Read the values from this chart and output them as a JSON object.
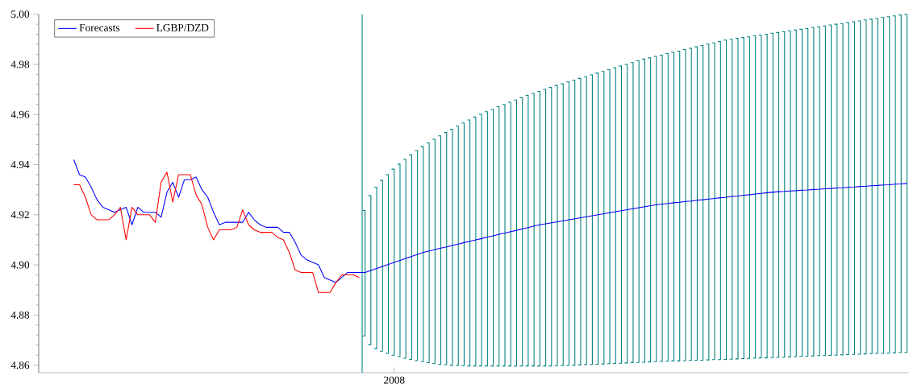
{
  "chart_data": {
    "type": "line",
    "categories": [
      null,
      null,
      null,
      null,
      null,
      null,
      null,
      null,
      null,
      null,
      null,
      null,
      null,
      null,
      null,
      null,
      null,
      null,
      null,
      null,
      null,
      null,
      null,
      null,
      null,
      null,
      null,
      null,
      null,
      null,
      null,
      null,
      null,
      null,
      null,
      null,
      null,
      null,
      null,
      null,
      null,
      null,
      null,
      null,
      null,
      null,
      null,
      null,
      null,
      null,
      null,
      null,
      null,
      null,
      null,
      "2008",
      null,
      null,
      null,
      null,
      null,
      null,
      null,
      null,
      null,
      null,
      null,
      null,
      null,
      null,
      null,
      null,
      null,
      null,
      null,
      null,
      null,
      null,
      null,
      null,
      null,
      null,
      null,
      null,
      null,
      null,
      null,
      null,
      null,
      null,
      null,
      null,
      null,
      null,
      null,
      null,
      null,
      null,
      null,
      null,
      null,
      null,
      null,
      null,
      null,
      null,
      null,
      null,
      null,
      null,
      null,
      null,
      null,
      null,
      null,
      null,
      null,
      null,
      null,
      null,
      null,
      null,
      null,
      null,
      null,
      null,
      null,
      null,
      null,
      null,
      null,
      null,
      null,
      null,
      null,
      null,
      null,
      null,
      null,
      null,
      null,
      null,
      null,
      null
    ],
    "series": [
      {
        "name": "Forecasts",
        "color": "#0000ff",
        "values": [
          4.942,
          4.936,
          4.935,
          4.931,
          4.926,
          4.923,
          4.922,
          4.921,
          4.922,
          4.923,
          4.916,
          4.923,
          4.921,
          4.921,
          4.921,
          4.919,
          4.929,
          4.933,
          4.927,
          4.934,
          4.934,
          4.935,
          4.93,
          4.927,
          4.921,
          4.916,
          4.917,
          4.917,
          4.917,
          4.917,
          4.921,
          4.918,
          4.916,
          4.915,
          4.915,
          4.915,
          4.913,
          4.913,
          4.909,
          4.904,
          4.902,
          4.901,
          4.9,
          4.895,
          4.894,
          4.893,
          4.895,
          4.897,
          4.897,
          4.897,
          4.897,
          4.8978,
          4.8986,
          4.8994,
          4.9002,
          4.901,
          4.9018,
          4.9026,
          4.9034,
          4.9042,
          4.905,
          4.9056,
          4.9061,
          4.9067,
          4.9072,
          4.9078,
          4.9083,
          4.9089,
          4.9094,
          4.91,
          4.9105,
          4.9111,
          4.9116,
          4.9122,
          4.9127,
          4.9133,
          4.9138,
          4.9144,
          4.9149,
          4.9155,
          4.916,
          4.9164,
          4.9168,
          4.9172,
          4.9176,
          4.918,
          4.9184,
          4.9188,
          4.9192,
          4.9196,
          4.92,
          4.9204,
          4.9208,
          4.9212,
          4.9216,
          4.922,
          4.9224,
          4.9228,
          4.9232,
          4.9236,
          4.924,
          4.9243,
          4.9245,
          4.9248,
          4.925,
          4.9253,
          4.9255,
          4.9258,
          4.926,
          4.9263,
          4.9265,
          4.9268,
          4.927,
          4.9273,
          4.9275,
          4.9278,
          4.928,
          4.9283,
          4.9285,
          4.9288,
          4.929,
          4.9292,
          4.9293,
          4.9295,
          4.9296,
          4.9298,
          4.9299,
          4.9301,
          4.9302,
          4.9304,
          4.9305,
          4.9307,
          4.9308,
          4.931,
          4.9311,
          4.9313,
          4.9314,
          4.9316,
          4.9317,
          4.9319,
          4.932,
          4.9322,
          4.9323,
          4.9325
        ],
        "errors": [
          null,
          null,
          null,
          null,
          null,
          null,
          null,
          null,
          null,
          null,
          null,
          null,
          null,
          null,
          null,
          null,
          null,
          null,
          null,
          null,
          null,
          null,
          null,
          null,
          null,
          null,
          null,
          null,
          null,
          null,
          null,
          null,
          null,
          null,
          null,
          null,
          null,
          null,
          null,
          null,
          null,
          null,
          null,
          null,
          null,
          null,
          null,
          null,
          null,
          null,
          [
            4.8717,
            4.9217
          ],
          [
            4.8682,
            4.9276
          ],
          [
            4.8666,
            4.931
          ],
          [
            4.8656,
            4.9337
          ],
          [
            4.8647,
            4.936
          ],
          [
            4.864,
            4.9382
          ],
          [
            4.8634,
            4.9402
          ],
          [
            4.8628,
            4.9421
          ],
          [
            4.8623,
            4.9439
          ],
          [
            4.8618,
            4.9456
          ],
          [
            4.8614,
            4.9472
          ],
          [
            4.861,
            4.9487
          ],
          [
            4.8607,
            4.9501
          ],
          [
            4.8604,
            4.9515
          ],
          [
            4.8602,
            4.9528
          ],
          [
            4.86,
            4.9541
          ],
          [
            4.8599,
            4.9554
          ],
          [
            4.8598,
            4.9566
          ],
          [
            4.8597,
            4.9578
          ],
          [
            4.8597,
            4.959
          ],
          [
            4.8597,
            4.9601
          ],
          [
            4.8597,
            4.9611
          ],
          [
            4.8597,
            4.9621
          ],
          [
            4.8597,
            4.9631
          ],
          [
            4.8597,
            4.964
          ],
          [
            4.8597,
            4.9649
          ],
          [
            4.8597,
            4.9658
          ],
          [
            4.8597,
            4.9667
          ],
          [
            4.8597,
            4.9676
          ],
          [
            4.8597,
            4.9684
          ],
          [
            4.8597,
            4.9692
          ],
          [
            4.8597,
            4.97
          ],
          [
            4.8597,
            4.9708
          ],
          [
            4.8598,
            4.9716
          ],
          [
            4.8598,
            4.9723
          ],
          [
            4.8599,
            4.973
          ],
          [
            4.86,
            4.9737
          ],
          [
            4.8601,
            4.9744
          ],
          [
            4.8602,
            4.9751
          ],
          [
            4.8603,
            4.9758
          ],
          [
            4.8604,
            4.9765
          ],
          [
            4.8605,
            4.9772
          ],
          [
            4.8606,
            4.9779
          ],
          [
            4.8607,
            4.9786
          ],
          [
            4.8608,
            4.9793
          ],
          [
            4.8609,
            4.98
          ],
          [
            4.861,
            4.9807
          ],
          [
            4.8611,
            4.9814
          ],
          [
            4.8612,
            4.9821
          ],
          [
            4.8613,
            4.9826
          ],
          [
            4.8614,
            4.9832
          ],
          [
            4.8615,
            4.9837
          ],
          [
            4.8616,
            4.9843
          ],
          [
            4.8617,
            4.9848
          ],
          [
            4.8617,
            4.9853
          ],
          [
            4.8618,
            4.9859
          ],
          [
            4.8619,
            4.9864
          ],
          [
            4.862,
            4.987
          ],
          [
            4.862,
            4.9875
          ],
          [
            4.8621,
            4.9881
          ],
          [
            4.8622,
            4.9886
          ],
          [
            4.8622,
            4.9891
          ],
          [
            4.8623,
            4.9897
          ],
          [
            4.8624,
            4.99
          ],
          [
            4.8625,
            4.9904
          ],
          [
            4.8626,
            4.9907
          ],
          [
            4.8627,
            4.991
          ],
          [
            4.8628,
            4.9914
          ],
          [
            4.8629,
            4.9917
          ],
          [
            4.8629,
            4.992
          ],
          [
            4.863,
            4.9924
          ],
          [
            4.8631,
            4.9927
          ],
          [
            4.8632,
            4.993
          ],
          [
            4.8633,
            4.9934
          ],
          [
            4.8634,
            4.9937
          ],
          [
            4.8635,
            4.994
          ],
          [
            4.8636,
            4.9943
          ],
          [
            4.8637,
            4.9947
          ],
          [
            4.8638,
            4.995
          ],
          [
            4.8638,
            4.9953
          ],
          [
            4.8639,
            4.9957
          ],
          [
            4.864,
            4.996
          ],
          [
            4.8641,
            4.9963
          ],
          [
            4.8642,
            4.9967
          ],
          [
            4.8643,
            4.997
          ],
          [
            4.8644,
            4.9973
          ],
          [
            4.8645,
            4.9977
          ],
          [
            4.8646,
            4.998
          ],
          [
            4.8647,
            4.9983
          ],
          [
            4.8647,
            4.9987
          ],
          [
            4.8648,
            4.999
          ],
          [
            4.8649,
            4.9993
          ],
          [
            4.865,
            4.9997
          ],
          [
            4.8651,
            5.0
          ]
        ]
      },
      {
        "name": "LGBP/DZD",
        "color": "#ff0000",
        "values": [
          4.932,
          4.932,
          4.927,
          4.92,
          4.918,
          4.918,
          4.918,
          4.92,
          4.923,
          4.91,
          4.923,
          4.92,
          4.92,
          4.92,
          4.917,
          4.933,
          4.937,
          4.925,
          4.936,
          4.936,
          4.936,
          4.928,
          4.924,
          4.915,
          4.91,
          4.914,
          4.914,
          4.914,
          4.915,
          4.922,
          4.916,
          4.914,
          4.913,
          4.913,
          4.913,
          4.911,
          4.91,
          4.905,
          4.898,
          4.897,
          4.897,
          4.897,
          4.889,
          4.889,
          4.889,
          4.893,
          4.896,
          4.896,
          4.896,
          4.895,
          null,
          null,
          null,
          null,
          null,
          null,
          null,
          null,
          null,
          null,
          null,
          null,
          null,
          null,
          null,
          null,
          null,
          null,
          null,
          null,
          null,
          null,
          null,
          null,
          null,
          null,
          null,
          null,
          null,
          null,
          null,
          null,
          null,
          null,
          null,
          null,
          null,
          null,
          null,
          null,
          null,
          null,
          null,
          null,
          null,
          null,
          null,
          null,
          null,
          null,
          null,
          null,
          null,
          null,
          null,
          null,
          null,
          null,
          null,
          null,
          null,
          null,
          null,
          null,
          null,
          null,
          null,
          null,
          null,
          null,
          null,
          null,
          null,
          null,
          null,
          null,
          null,
          null,
          null,
          null,
          null,
          null,
          null,
          null,
          null,
          null,
          null,
          null,
          null,
          null,
          null,
          null,
          null,
          null
        ]
      }
    ],
    "ylim": [
      4.857,
      5.0
    ],
    "yticks": [
      {
        "value": 4.86,
        "label": "4.86"
      },
      {
        "value": 4.88,
        "label": "4.88"
      },
      {
        "value": 4.9,
        "label": "4.90"
      },
      {
        "value": 4.92,
        "label": "4.92"
      },
      {
        "value": 4.94,
        "label": "4.94"
      },
      {
        "value": 4.96,
        "label": "4.96"
      },
      {
        "value": 4.98,
        "label": "4.98"
      },
      {
        "value": 5.0,
        "label": "5.00"
      }
    ],
    "ref_lines": [
      {
        "axis": "x",
        "color": "#008080"
      }
    ],
    "legend": "top left"
  }
}
